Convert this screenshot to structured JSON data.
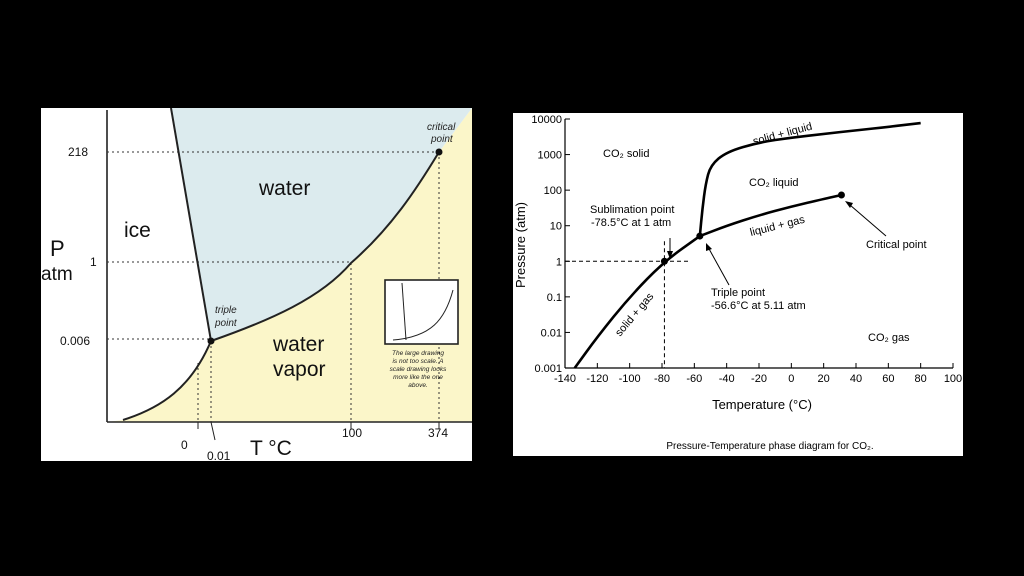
{
  "water_diagram": {
    "region_labels": {
      "ice": "ice",
      "water": "water",
      "vapor_line1": "water",
      "vapor_line2": "vapor"
    },
    "axis": {
      "p_label": "P",
      "p_unit": "atm",
      "t_label": "T °C"
    },
    "y_ticks": [
      "218",
      "1",
      "0.006"
    ],
    "x_ticks": [
      "0",
      "0.01",
      "100",
      "374"
    ],
    "critical_point": {
      "line1": "critical",
      "line2": "point"
    },
    "triple_point": {
      "line1": "triple",
      "line2": "point"
    },
    "inset_note": {
      "line1": "The large drawing",
      "line2": "is not too scale.  A",
      "line3": "scale drawing looks",
      "line4": "more like the one",
      "line5": "above."
    },
    "colors": {
      "liquid": "#dcebee",
      "vapor": "#fbf6c9",
      "solid": "#ffffff"
    }
  },
  "chart_data": {
    "type": "line",
    "title": "",
    "caption": "Pressure-Temperature phase diagram for CO₂.",
    "xlabel": "Temperature (°C)",
    "ylabel": "Pressure (atm)",
    "xlim": [
      -140,
      100
    ],
    "ylim": [
      0.001,
      10000
    ],
    "y_scale": "log",
    "x_ticks": [
      "-140",
      "-120",
      "-100",
      "-80",
      "-60",
      "-40",
      "-20",
      "0",
      "20",
      "40",
      "60",
      "80",
      "100"
    ],
    "y_ticks": [
      "10000",
      "1000",
      "100",
      "10",
      "1",
      "0.1",
      "0.01",
      "0.001"
    ],
    "series": [
      {
        "x": [
          -134,
          -120,
          -100,
          -78.5,
          -56.6
        ],
        "y": [
          0.001,
          0.0075,
          0.1,
          1,
          5.11
        ]
      },
      {
        "x": [
          -56.6,
          -40,
          -20,
          0,
          20,
          31
        ],
        "y": [
          5.11,
          10,
          19.7,
          34.5,
          56.5,
          73
        ]
      },
      {
        "x": [
          -56.6,
          -55,
          -53,
          -50,
          -40,
          -20,
          0,
          20,
          40,
          60,
          80
        ],
        "y": [
          5.11,
          30,
          150,
          500,
          1200,
          2200,
          3000,
          3800,
          4800,
          6000,
          7700
        ]
      }
    ],
    "points": [
      {
        "name": "sublimation",
        "x": -78.5,
        "y": 1
      },
      {
        "name": "triple",
        "x": -56.6,
        "y": 5.11
      },
      {
        "name": "critical",
        "x": 31,
        "y": 73
      }
    ],
    "annotations": {
      "co2_solid": "CO₂ solid",
      "co2_liquid": "CO₂ liquid",
      "co2_gas": "CO₂ gas",
      "solid_liquid": "solid + liquid",
      "liquid_gas": "liquid + gas",
      "solid_gas": "solid + gas",
      "sublimation_line1": "Sublimation point",
      "sublimation_line2": "-78.5°C at 1 atm",
      "triple_line1": "Triple point",
      "triple_line2": "-56.6°C at 5.11 atm",
      "critical": "Critical point"
    }
  }
}
